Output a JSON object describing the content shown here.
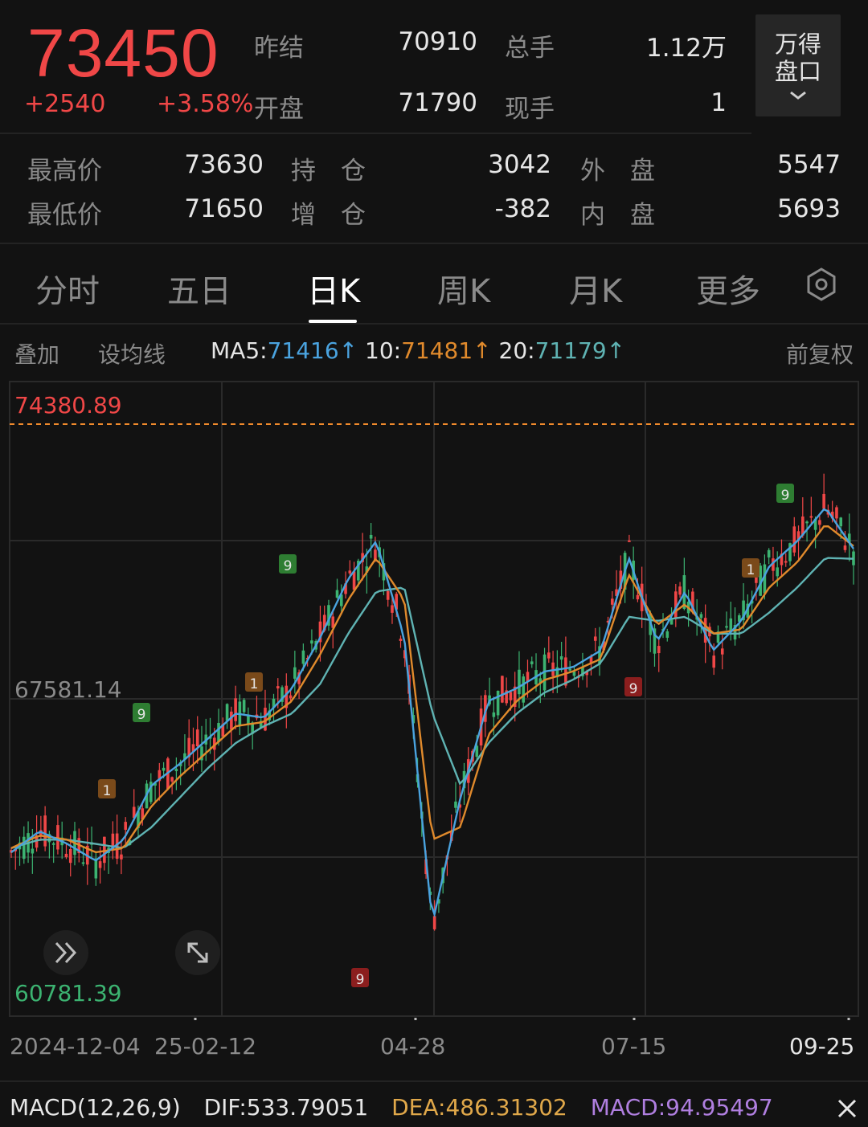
{
  "quote": {
    "price": "73450",
    "change": "+2540",
    "change_pct": "+3.58%",
    "fields_top": [
      {
        "label": "昨结",
        "value": "70910"
      },
      {
        "label": "总手",
        "value": "1.12万"
      },
      {
        "label": "开盘",
        "value": "71790"
      },
      {
        "label": "现手",
        "value": "1"
      }
    ],
    "fields_bottom": [
      {
        "label": "最高价",
        "value": "73630"
      },
      {
        "label": "持　仓",
        "value": "3042"
      },
      {
        "label": "外　盘",
        "value": "5547"
      },
      {
        "label": "最低价",
        "value": "71650"
      },
      {
        "label": "增　仓",
        "value": "-382"
      },
      {
        "label": "内　盘",
        "value": "5693"
      }
    ],
    "wande_line1": "万得",
    "wande_line2": "盘口"
  },
  "tabs": [
    "分时",
    "五日",
    "日K",
    "周K",
    "月K",
    "更多"
  ],
  "active_tab": "日K",
  "indicator_bar": {
    "overlay": "叠加",
    "set_ma": "设均线",
    "ma5_label": "MA5:",
    "ma5_value": "71416",
    "ma10_label": "10:",
    "ma10_value": "71481",
    "ma20_label": "20:",
    "ma20_value": "71179",
    "arrow": "↑",
    "adjust": "前复权"
  },
  "colors": {
    "up": "#f04747",
    "down": "#3cb371",
    "ma5": "#4aa3df",
    "ma10": "#e08a2c",
    "ma20": "#5fb3b3",
    "dea": "#e0a84a",
    "macd": "#b07fe0"
  },
  "chart_data": {
    "type": "candlestick",
    "y_labels": {
      "top": "74380.89",
      "middle": "67581.14",
      "bottom": "60781.39"
    },
    "ylim": [
      60781.39,
      74380.89
    ],
    "x_ticks": [
      "2024-12-04",
      "25-02-12",
      "04-28",
      "07-15",
      "09-25"
    ],
    "markers": [
      "1",
      "9"
    ],
    "ma5_trend": [
      64200,
      64700,
      64400,
      64000,
      64500,
      65800,
      66300,
      66900,
      67500,
      67400,
      68100,
      69300,
      70700,
      71600,
      69300,
      62500,
      65500,
      67800,
      68100,
      68500,
      68600,
      69000,
      71200,
      69200,
      70400,
      69000,
      69700,
      71000,
      71600,
      72400,
      71416
    ],
    "ma10_trend": [
      64300,
      64600,
      64500,
      64200,
      64300,
      65300,
      66000,
      66600,
      67200,
      67300,
      67800,
      68900,
      70200,
      71200,
      70200,
      64500,
      64800,
      67000,
      67800,
      68300,
      68500,
      68800,
      70800,
      69600,
      70100,
      69400,
      69500,
      70500,
      71100,
      72000,
      71481
    ],
    "ma20_trend": [
      64300,
      64500,
      64500,
      64400,
      64300,
      64800,
      65500,
      66200,
      66800,
      67200,
      67500,
      68200,
      69400,
      70400,
      70500,
      67500,
      65800,
      66800,
      67500,
      68000,
      68300,
      68700,
      69800,
      69700,
      69800,
      69400,
      69400,
      69900,
      70500,
      71200,
      71179
    ]
  },
  "macd_bar": {
    "name": "MACD(12,26,9)",
    "dif_label": "DIF:",
    "dif_value": "533.79051",
    "dea_label": "DEA:",
    "dea_value": "486.31302",
    "macd_label": "MACD:",
    "macd_value": "94.95497"
  }
}
